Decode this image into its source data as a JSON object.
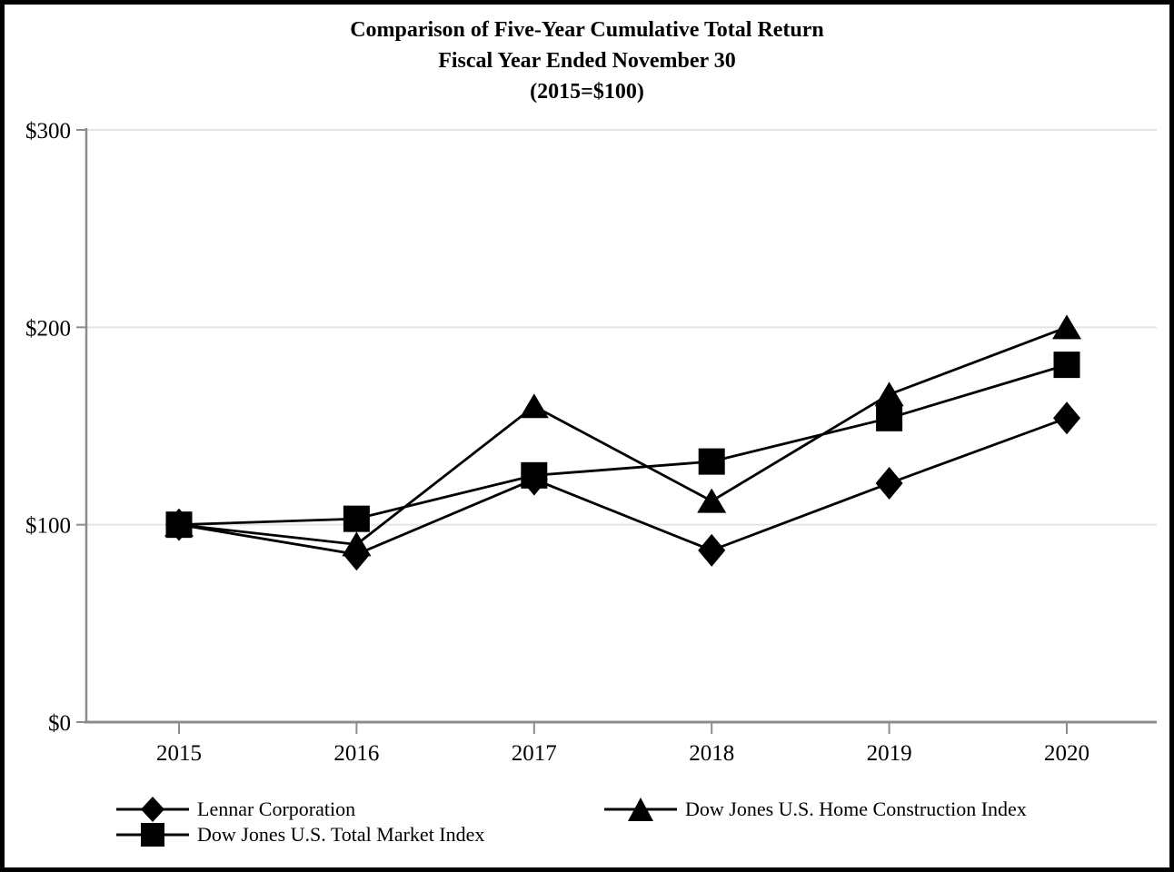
{
  "chart_data": {
    "type": "line",
    "title": "Comparison of Five-Year Cumulative Total Return",
    "subtitle": "Fiscal Year Ended November 30",
    "subtitle2": "(2015=$100)",
    "categories": [
      "2015",
      "2016",
      "2017",
      "2018",
      "2019",
      "2020"
    ],
    "series": [
      {
        "name": "Lennar Corporation",
        "marker": "diamond",
        "values": [
          100,
          85,
          123,
          87,
          121,
          154
        ]
      },
      {
        "name": "Dow Jones U.S. Total Market Index",
        "marker": "square",
        "values": [
          100,
          103,
          125,
          132,
          154,
          181
        ]
      },
      {
        "name": "Dow Jones U.S. Home Construction Index",
        "marker": "triangle",
        "values": [
          100,
          90,
          160,
          112,
          166,
          200
        ]
      }
    ],
    "y_ticks": [
      {
        "value": 0,
        "label": "$0"
      },
      {
        "value": 100,
        "label": "$100"
      },
      {
        "value": 200,
        "label": "$200"
      },
      {
        "value": 300,
        "label": "$300"
      }
    ],
    "ylim": [
      0,
      300
    ],
    "grid": "horizontal",
    "legend_position": "bottom",
    "colors": {
      "line": "#000000",
      "marker": "#000000",
      "axis": "#8c8c8c",
      "gridline": "#e4e4e4",
      "frame": "#000000"
    }
  }
}
